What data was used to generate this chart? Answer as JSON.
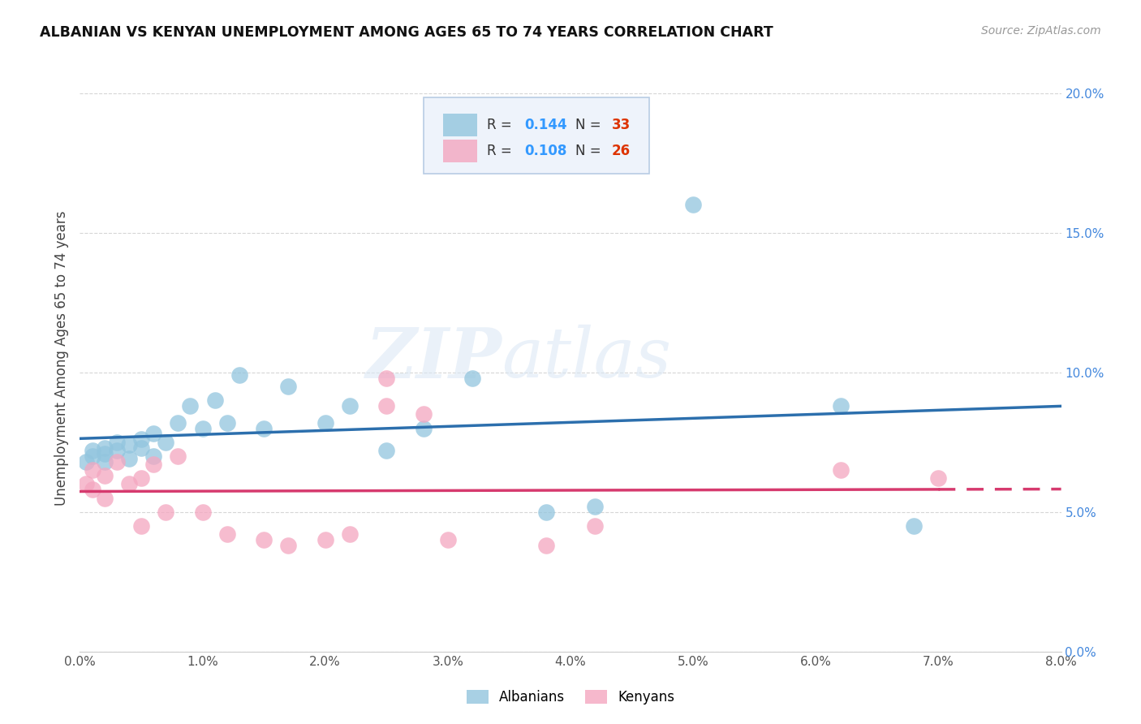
{
  "title": "ALBANIAN VS KENYAN UNEMPLOYMENT AMONG AGES 65 TO 74 YEARS CORRELATION CHART",
  "source": "Source: ZipAtlas.com",
  "ylabel": "Unemployment Among Ages 65 to 74 years",
  "xmin": 0.0,
  "xmax": 0.08,
  "ymin": 0.0,
  "ymax": 0.21,
  "albanian_R": 0.144,
  "albanian_N": 33,
  "kenyan_R": 0.108,
  "kenyan_N": 26,
  "albanian_color": "#92c5de",
  "kenyan_color": "#f4a6c0",
  "albanian_line_color": "#2c6fad",
  "kenyan_line_color": "#d63a6e",
  "albanian_x": [
    0.0005,
    0.001,
    0.001,
    0.002,
    0.002,
    0.002,
    0.003,
    0.003,
    0.004,
    0.004,
    0.005,
    0.005,
    0.006,
    0.006,
    0.007,
    0.008,
    0.009,
    0.01,
    0.011,
    0.012,
    0.013,
    0.015,
    0.017,
    0.02,
    0.022,
    0.025,
    0.028,
    0.032,
    0.038,
    0.042,
    0.05,
    0.062,
    0.068
  ],
  "albanian_y": [
    0.068,
    0.072,
    0.07,
    0.073,
    0.071,
    0.068,
    0.075,
    0.072,
    0.074,
    0.069,
    0.076,
    0.073,
    0.078,
    0.07,
    0.075,
    0.082,
    0.088,
    0.08,
    0.09,
    0.082,
    0.099,
    0.08,
    0.095,
    0.082,
    0.088,
    0.072,
    0.08,
    0.098,
    0.05,
    0.052,
    0.16,
    0.088,
    0.045
  ],
  "kenyan_x": [
    0.0005,
    0.001,
    0.001,
    0.002,
    0.002,
    0.003,
    0.004,
    0.005,
    0.005,
    0.006,
    0.007,
    0.008,
    0.01,
    0.012,
    0.015,
    0.017,
    0.02,
    0.022,
    0.025,
    0.025,
    0.028,
    0.03,
    0.038,
    0.042,
    0.062,
    0.07
  ],
  "kenyan_y": [
    0.06,
    0.065,
    0.058,
    0.063,
    0.055,
    0.068,
    0.06,
    0.062,
    0.045,
    0.067,
    0.05,
    0.07,
    0.05,
    0.042,
    0.04,
    0.038,
    0.04,
    0.042,
    0.098,
    0.088,
    0.085,
    0.04,
    0.038,
    0.045,
    0.065,
    0.062
  ],
  "watermark_zip": "ZIP",
  "watermark_atlas": "atlas",
  "legend_box_color": "#eef3fb",
  "legend_box_border": "#b0c4de",
  "r_color": "#3399ff",
  "n_color": "#dd3300",
  "albanian_label": "Albanians",
  "kenyan_label": "Kenyans"
}
